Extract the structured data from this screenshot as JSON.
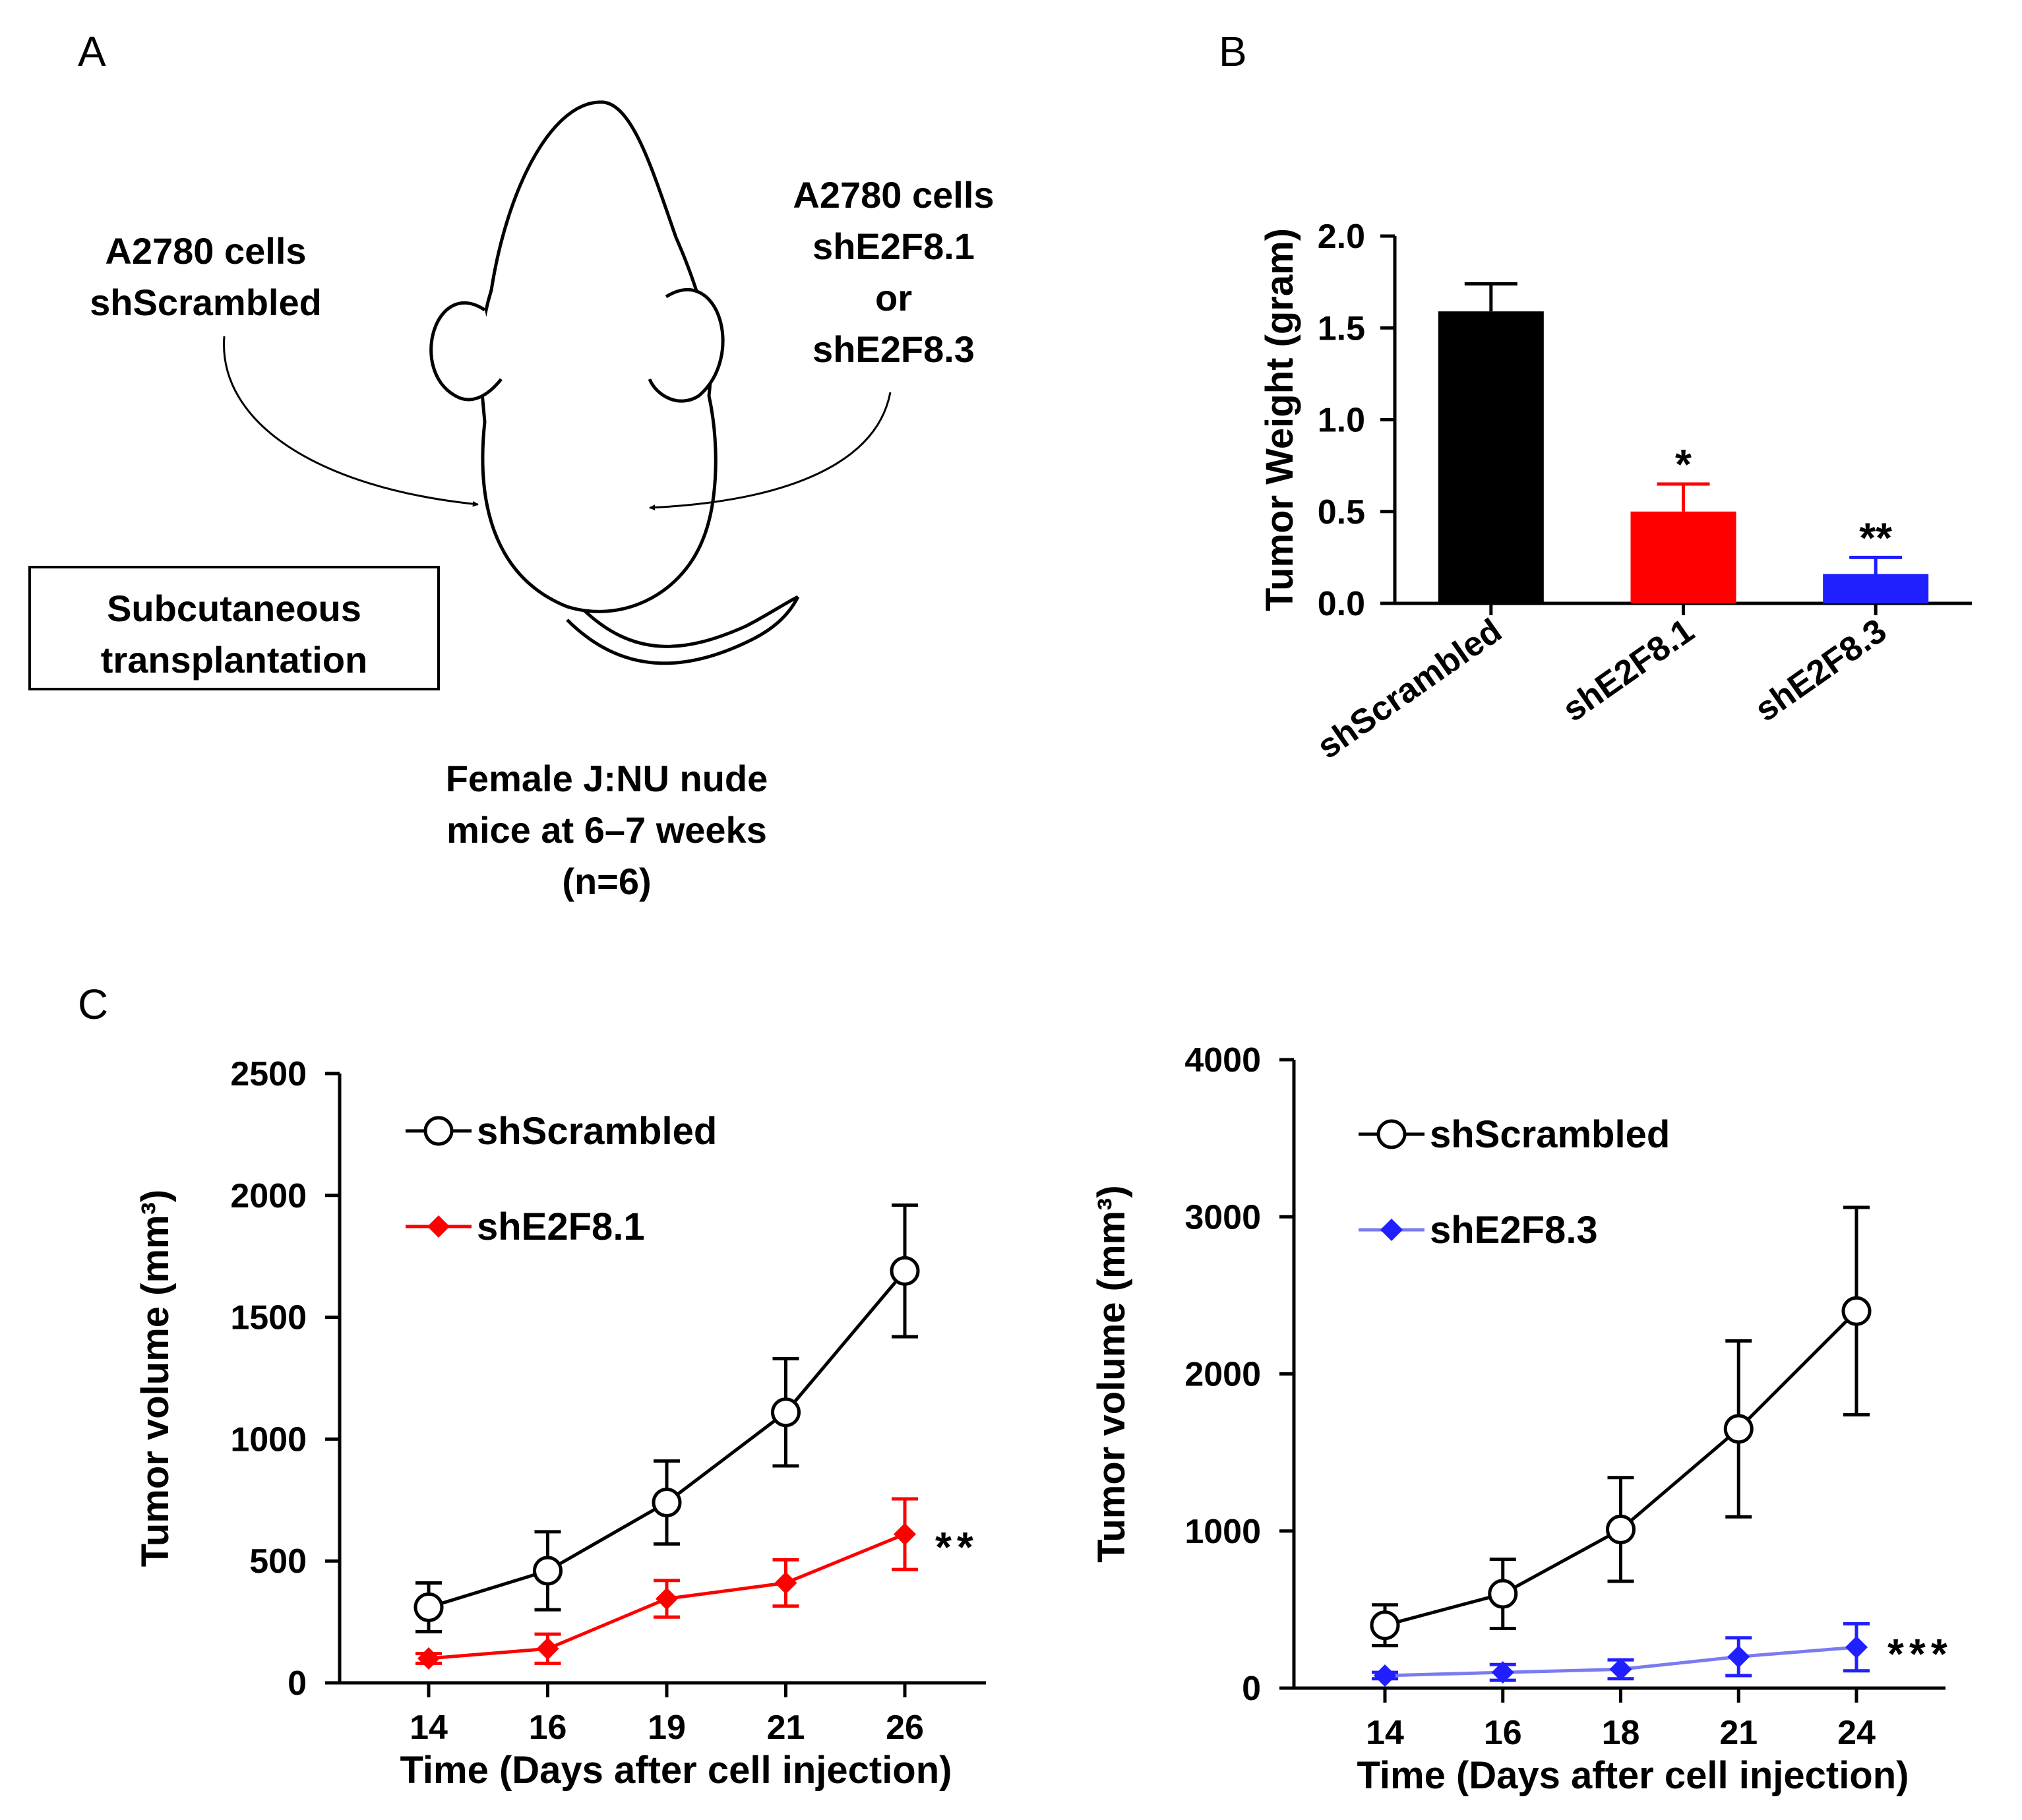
{
  "panel_a": {
    "letter": "A",
    "left_label": [
      "A2780 cells",
      "shScrambled"
    ],
    "right_label": [
      "A2780 cells",
      "shE2F8.1",
      "or",
      "shE2F8.3"
    ],
    "box_label": [
      "Subcutaneous",
      "transplantation"
    ],
    "caption": [
      "Female J:NU  nude",
      "mice at 6–7 weeks",
      "(n=6)"
    ]
  },
  "panel_b": {
    "letter": "B"
  },
  "panel_c": {
    "letter": "C"
  },
  "colors": {
    "black": "#000000",
    "red": "#ff0000",
    "blue": "#1f1fff",
    "blue_line": "#7b7bf0"
  },
  "chart_data": [
    {
      "id": "B",
      "type": "bar",
      "ylabel": "Tumor Weight (gram)",
      "ylim": [
        0,
        2.0
      ],
      "yticks": [
        "0.0",
        "0.5",
        "1.0",
        "1.5",
        "2.0"
      ],
      "categories": [
        "shScrambled",
        "shE2F8.1",
        "shE2F8.3"
      ],
      "values": [
        1.59,
        0.5,
        0.16
      ],
      "errors": [
        0.15,
        0.15,
        0.09
      ],
      "colors": [
        "#000000",
        "#ff0000",
        "#1f1fff"
      ],
      "significance": [
        "",
        "*",
        "**"
      ]
    },
    {
      "id": "C-left",
      "type": "line",
      "xlabel": "Time (Days after cell injection)",
      "ylabel": "Tumor volume (mm³)",
      "x": [
        "14",
        "16",
        "19",
        "21",
        "26"
      ],
      "ylim": [
        0,
        2500
      ],
      "yticks": [
        "0",
        "500",
        "1000",
        "1500",
        "2000",
        "2500"
      ],
      "series": [
        {
          "name": "shScrambled",
          "values": [
            310,
            460,
            740,
            1110,
            1690
          ],
          "errors": [
            100,
            160,
            170,
            220,
            270
          ],
          "color": "#000000",
          "marker": "circle"
        },
        {
          "name": "shE2F8.1",
          "values": [
            100,
            140,
            345,
            410,
            610
          ],
          "errors": [
            20,
            60,
            75,
            95,
            145
          ],
          "color": "#ff0000",
          "marker": "diamond"
        }
      ],
      "significance": "**"
    },
    {
      "id": "C-right",
      "type": "line",
      "xlabel": "Time (Days after cell injection)",
      "ylabel": "Tumor volume (mm³)",
      "x": [
        "14",
        "16",
        "18",
        "21",
        "24"
      ],
      "ylim": [
        0,
        4000
      ],
      "yticks": [
        "0",
        "1000",
        "2000",
        "3000",
        "4000"
      ],
      "series": [
        {
          "name": "shScrambled",
          "values": [
            400,
            600,
            1010,
            1650,
            2400
          ],
          "errors": [
            130,
            220,
            330,
            560,
            660
          ],
          "color": "#000000",
          "marker": "circle"
        },
        {
          "name": "shE2F8.3",
          "values": [
            80,
            100,
            120,
            200,
            260
          ],
          "errors": [
            20,
            50,
            60,
            120,
            150
          ],
          "color": "#1f1fff",
          "line_color": "#7b7bf0",
          "marker": "diamond"
        }
      ],
      "significance": "***"
    }
  ]
}
